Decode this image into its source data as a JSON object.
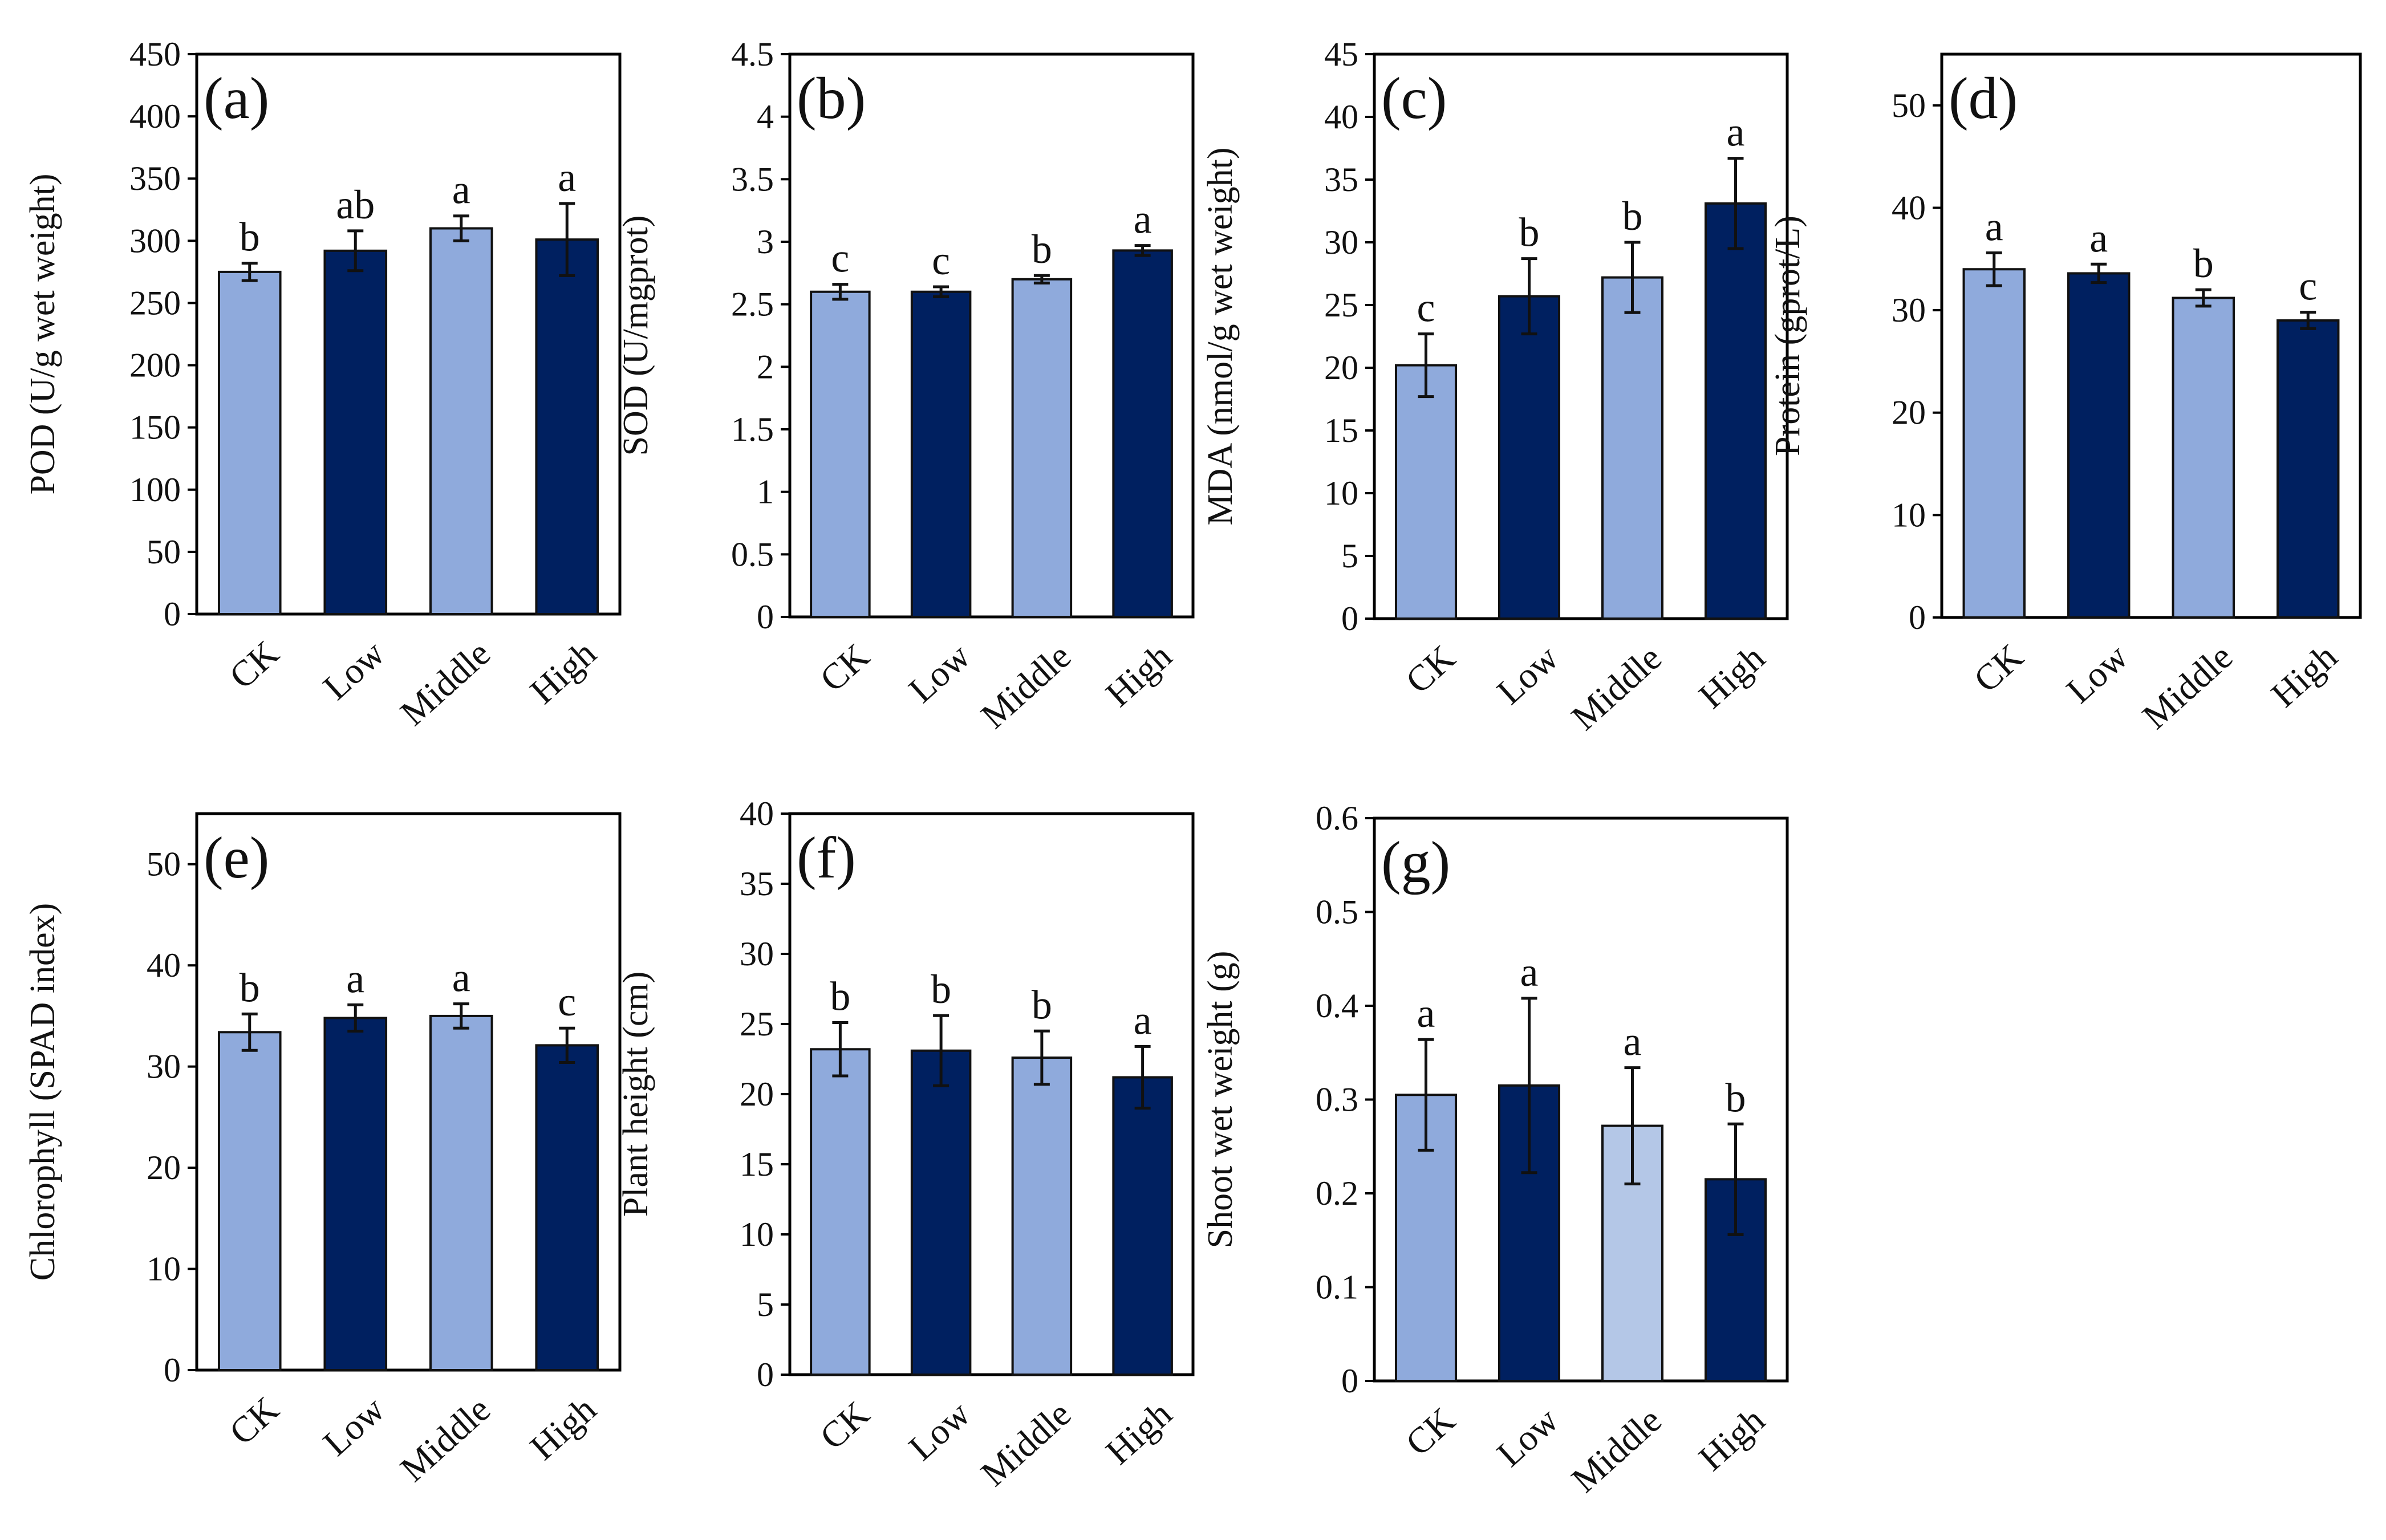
{
  "figure": {
    "x_categories": [
      "CK",
      "Low",
      "Middle",
      "High"
    ],
    "colors": {
      "light": "#8faadc",
      "lighter": "#b4c7e7",
      "dark": "#002060",
      "axis": "#000000",
      "error_bar": "#111111"
    }
  },
  "chart_data": [
    {
      "panel": "(a)",
      "type": "bar",
      "ylabel": "POD (U/g wet weight)",
      "ylim": [
        0,
        450
      ],
      "yticks": [
        "0",
        "50",
        "100",
        "150",
        "200",
        "250",
        "300",
        "350",
        "400",
        "450"
      ],
      "categories": [
        "CK",
        "Low",
        "Middle",
        "High"
      ],
      "values": [
        275,
        292,
        310,
        301
      ],
      "errors": [
        7,
        16,
        10,
        29
      ],
      "significance": [
        "b",
        "ab",
        "a",
        "a"
      ],
      "bar_colors": [
        "light",
        "dark",
        "light",
        "dark"
      ]
    },
    {
      "panel": "(b)",
      "type": "bar",
      "ylabel": "SOD (U/mgprot)",
      "ylim": [
        0,
        4.5
      ],
      "yticks": [
        "0",
        "0.5",
        "1",
        "1.5",
        "2",
        "2.5",
        "3",
        "3.5",
        "4",
        "4.5"
      ],
      "categories": [
        "CK",
        "Low",
        "Middle",
        "High"
      ],
      "values": [
        2.6,
        2.6,
        2.7,
        2.93
      ],
      "errors": [
        0.06,
        0.04,
        0.03,
        0.04
      ],
      "significance": [
        "c",
        "c",
        "b",
        "a"
      ],
      "bar_colors": [
        "light",
        "dark",
        "light",
        "dark"
      ]
    },
    {
      "panel": "(c)",
      "type": "bar",
      "ylabel": "MDA (nmol/g  wet weight)",
      "ylim": [
        0,
        45
      ],
      "yticks": [
        "0",
        "5",
        "10",
        "15",
        "20",
        "25",
        "30",
        "35",
        "40",
        "45"
      ],
      "categories": [
        "CK",
        "Low",
        "Middle",
        "High"
      ],
      "values": [
        20.2,
        25.7,
        27.2,
        33.1
      ],
      "errors": [
        2.5,
        3.0,
        2.8,
        3.6
      ],
      "significance": [
        "c",
        "b",
        "b",
        "a"
      ],
      "bar_colors": [
        "light",
        "dark",
        "light",
        "dark"
      ]
    },
    {
      "panel": "(d)",
      "type": "bar",
      "ylabel": "Protein (gprot/L)",
      "ylim": [
        0,
        55
      ],
      "yticks": [
        "0",
        "10",
        "20",
        "30",
        "40",
        "50"
      ],
      "categories": [
        "CK",
        "Low",
        "Middle",
        "High"
      ],
      "values": [
        34.0,
        33.6,
        31.2,
        29.0
      ],
      "errors": [
        1.6,
        0.9,
        0.8,
        0.8
      ],
      "significance": [
        "a",
        "a",
        "b",
        "c"
      ],
      "bar_colors": [
        "light",
        "dark",
        "light",
        "dark"
      ]
    },
    {
      "panel": "(e)",
      "type": "bar",
      "ylabel": "Chlorophyll  (SPAD index)",
      "ylim": [
        0,
        55
      ],
      "yticks": [
        "0",
        "10",
        "20",
        "30",
        "40",
        "50"
      ],
      "categories": [
        "CK",
        "Low",
        "Middle",
        "High"
      ],
      "values": [
        33.4,
        34.8,
        35.0,
        32.1
      ],
      "errors": [
        1.8,
        1.3,
        1.2,
        1.7
      ],
      "significance": [
        "b",
        "a",
        "a",
        "c"
      ],
      "bar_colors": [
        "light",
        "dark",
        "light",
        "dark"
      ]
    },
    {
      "panel": "(f)",
      "type": "bar",
      "ylabel": "Plant height (cm)",
      "ylim": [
        0,
        40
      ],
      "yticks": [
        "0",
        "5",
        "10",
        "15",
        "20",
        "25",
        "30",
        "35",
        "40"
      ],
      "categories": [
        "CK",
        "Low",
        "Middle",
        "High"
      ],
      "values": [
        23.2,
        23.1,
        22.6,
        21.2
      ],
      "errors": [
        1.9,
        2.5,
        1.9,
        2.2
      ],
      "significance": [
        "b",
        "b",
        "b",
        "a"
      ],
      "bar_colors": [
        "light",
        "dark",
        "light",
        "dark"
      ]
    },
    {
      "panel": "(g)",
      "type": "bar",
      "ylabel": "Shoot wet weight (g)",
      "ylim": [
        0,
        0.6
      ],
      "yticks": [
        "0",
        "0.1",
        "0.2",
        "0.3",
        "0.4",
        "0.5",
        "0.6"
      ],
      "categories": [
        "CK",
        "Low",
        "Middle",
        "High"
      ],
      "values": [
        0.305,
        0.315,
        0.272,
        0.215
      ],
      "errors": [
        0.059,
        0.093,
        0.062,
        0.059
      ],
      "significance": [
        "a",
        "a",
        "a",
        "b"
      ],
      "bar_colors": [
        "light",
        "dark",
        "lighter",
        "dark"
      ]
    }
  ]
}
